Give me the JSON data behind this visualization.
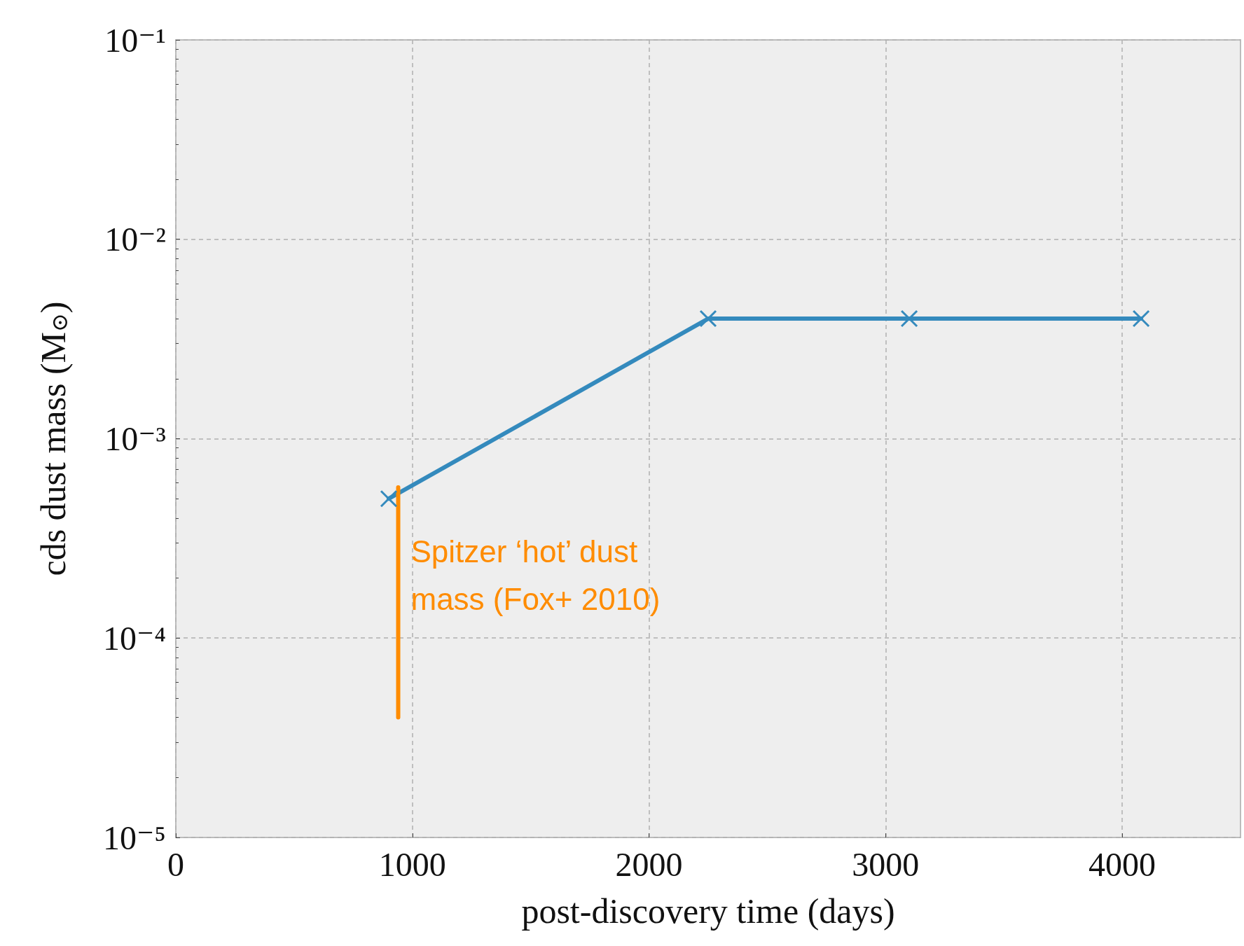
{
  "chart_data": {
    "type": "line",
    "xlabel": "post-discovery time (days)",
    "ylabel": "cds dust mass (M$_{⊙}$)",
    "series": [
      {
        "color": "#348abd",
        "marker": "cross",
        "x": [
          900,
          2250,
          3100,
          4080
        ],
        "values": [
          0.0005,
          0.004,
          0.004,
          0.004
        ]
      },
      {
        "color": "#ff8c00",
        "marker": "none",
        "x": [
          940,
          940
        ],
        "values": [
          4e-05,
          0.00057
        ]
      }
    ],
    "annotations": [
      "Spitzer ‘hot’ dust mass (Fox+ 2010)"
    ],
    "xlim": [
      0,
      4500
    ],
    "xticks": [
      0,
      1000,
      2000,
      3000,
      4000
    ],
    "ylim": [
      1e-05,
      0.1
    ],
    "yticks": [
      {
        "value": 1e-05,
        "label": "10⁻⁵"
      },
      {
        "value": 0.0001,
        "label": "10⁻⁴"
      },
      {
        "value": 0.001,
        "label": "10⁻³"
      },
      {
        "value": 0.01,
        "label": "10⁻²"
      },
      {
        "value": 0.1,
        "label": "10⁻¹"
      }
    ],
    "log": "y",
    "grid": true,
    "line_style": "solid"
  }
}
